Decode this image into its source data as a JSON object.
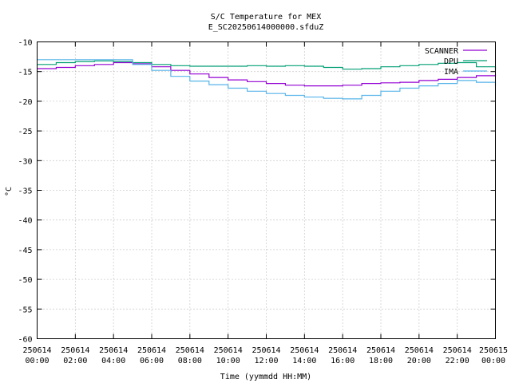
{
  "chart_data": {
    "type": "line",
    "title": "S/C Temperature for MEX",
    "subtitle": "E_SC20250614000000.sfduZ",
    "xlabel": "Time (yymmdd HH:MM)",
    "ylabel": "°C",
    "xlim": [
      "2025-06-14 00:00",
      "2025-06-15 00:00"
    ],
    "ylim": [
      -60,
      -10
    ],
    "grid": true,
    "legend_position": "top-right",
    "x_ticks": [
      {
        "date": "250614",
        "time": "00:00"
      },
      {
        "date": "250614",
        "time": "02:00"
      },
      {
        "date": "250614",
        "time": "04:00"
      },
      {
        "date": "250614",
        "time": "06:00"
      },
      {
        "date": "250614",
        "time": "08:00"
      },
      {
        "date": "250614",
        "time": "10:00"
      },
      {
        "date": "250614",
        "time": "12:00"
      },
      {
        "date": "250614",
        "time": "14:00"
      },
      {
        "date": "250614",
        "time": "16:00"
      },
      {
        "date": "250614",
        "time": "18:00"
      },
      {
        "date": "250614",
        "time": "20:00"
      },
      {
        "date": "250614",
        "time": "22:00"
      },
      {
        "date": "250615",
        "time": "00:00"
      }
    ],
    "y_ticks": [
      "-10",
      "-15",
      "-20",
      "-25",
      "-30",
      "-35",
      "-40",
      "-45",
      "-50",
      "-55",
      "-60"
    ],
    "series": [
      {
        "name": "SCANNER",
        "color": "#9400d3",
        "x": [
          "2025-06-14 00:00",
          "2025-06-14 01:00",
          "2025-06-14 02:00",
          "2025-06-14 03:00",
          "2025-06-14 04:00",
          "2025-06-14 05:00",
          "2025-06-14 06:00",
          "2025-06-14 07:00",
          "2025-06-14 08:00",
          "2025-06-14 09:00",
          "2025-06-14 10:00",
          "2025-06-14 11:00",
          "2025-06-14 12:00",
          "2025-06-14 13:00",
          "2025-06-14 14:00",
          "2025-06-14 15:00",
          "2025-06-14 16:00",
          "2025-06-14 17:00",
          "2025-06-14 18:00",
          "2025-06-14 19:00",
          "2025-06-14 20:00",
          "2025-06-14 21:00",
          "2025-06-14 22:00",
          "2025-06-14 23:00",
          "2025-06-15 00:00"
        ],
        "y": [
          -14.5,
          -14.3,
          -14.0,
          -13.8,
          -13.5,
          -13.7,
          -14.2,
          -14.8,
          -15.4,
          -16.0,
          -16.4,
          -16.7,
          -17.0,
          -17.3,
          -17.4,
          -17.4,
          -17.3,
          -17.0,
          -16.9,
          -16.8,
          -16.5,
          -16.3,
          -16.0,
          -15.7,
          -15.5
        ]
      },
      {
        "name": "DPU",
        "color": "#009e73",
        "x": [
          "2025-06-14 00:00",
          "2025-06-14 01:00",
          "2025-06-14 02:00",
          "2025-06-14 03:00",
          "2025-06-14 04:00",
          "2025-06-14 05:00",
          "2025-06-14 06:00",
          "2025-06-14 07:00",
          "2025-06-14 08:00",
          "2025-06-14 09:00",
          "2025-06-14 10:00",
          "2025-06-14 11:00",
          "2025-06-14 12:00",
          "2025-06-14 13:00",
          "2025-06-14 14:00",
          "2025-06-14 15:00",
          "2025-06-14 16:00",
          "2025-06-14 17:00",
          "2025-06-14 18:00",
          "2025-06-14 19:00",
          "2025-06-14 20:00",
          "2025-06-14 21:00",
          "2025-06-14 22:00",
          "2025-06-14 23:00",
          "2025-06-15 00:00"
        ],
        "y": [
          -13.8,
          -13.5,
          -13.3,
          -13.2,
          -13.3,
          -13.5,
          -13.8,
          -14.0,
          -14.1,
          -14.1,
          -14.1,
          -14.0,
          -14.1,
          -14.0,
          -14.1,
          -14.3,
          -14.6,
          -14.5,
          -14.2,
          -14.0,
          -13.8,
          -13.6,
          -13.5,
          -14.2,
          -14.8
        ]
      },
      {
        "name": "IMA",
        "color": "#56b4e9",
        "x": [
          "2025-06-14 00:00",
          "2025-06-14 01:00",
          "2025-06-14 02:00",
          "2025-06-14 03:00",
          "2025-06-14 04:00",
          "2025-06-14 05:00",
          "2025-06-14 06:00",
          "2025-06-14 07:00",
          "2025-06-14 08:00",
          "2025-06-14 09:00",
          "2025-06-14 10:00",
          "2025-06-14 11:00",
          "2025-06-14 12:00",
          "2025-06-14 13:00",
          "2025-06-14 14:00",
          "2025-06-14 15:00",
          "2025-06-14 16:00",
          "2025-06-14 17:00",
          "2025-06-14 18:00",
          "2025-06-14 19:00",
          "2025-06-14 20:00",
          "2025-06-14 21:00",
          "2025-06-14 22:00",
          "2025-06-14 23:00",
          "2025-06-15 00:00"
        ],
        "y": [
          -13.0,
          -13.0,
          -13.0,
          -13.0,
          -13.0,
          -13.8,
          -14.8,
          -15.8,
          -16.6,
          -17.2,
          -17.8,
          -18.3,
          -18.7,
          -19.0,
          -19.3,
          -19.5,
          -19.6,
          -19.0,
          -18.3,
          -17.8,
          -17.4,
          -17.0,
          -16.5,
          -16.8,
          -17.5
        ]
      }
    ]
  }
}
